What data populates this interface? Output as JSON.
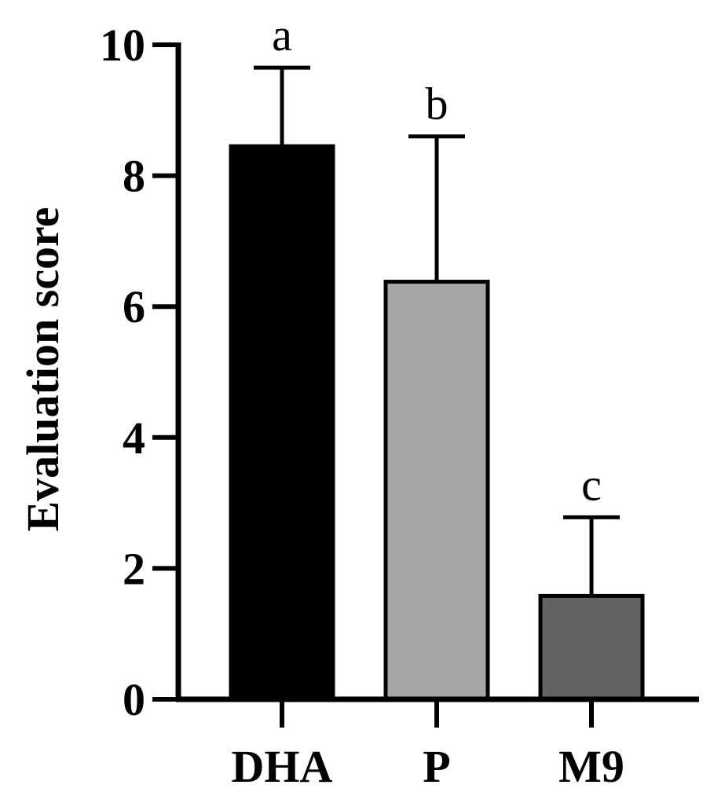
{
  "chart_data": {
    "type": "bar",
    "categories": [
      "DHA",
      "P",
      "M9"
    ],
    "values": [
      8.45,
      6.38,
      1.58
    ],
    "error_upper": [
      9.65,
      8.6,
      2.78
    ],
    "significance_letters": [
      "a",
      "b",
      "c"
    ],
    "bar_colors": [
      "#000000",
      "#a6a6a8",
      "#636363"
    ],
    "ylabel": "Evaluation score",
    "ylim": [
      0,
      10
    ],
    "yticks": [
      0,
      2,
      4,
      6,
      8,
      10
    ],
    "ytick_labels": [
      "0",
      "2",
      "4",
      "6",
      "8",
      "10"
    ],
    "grid": false
  }
}
